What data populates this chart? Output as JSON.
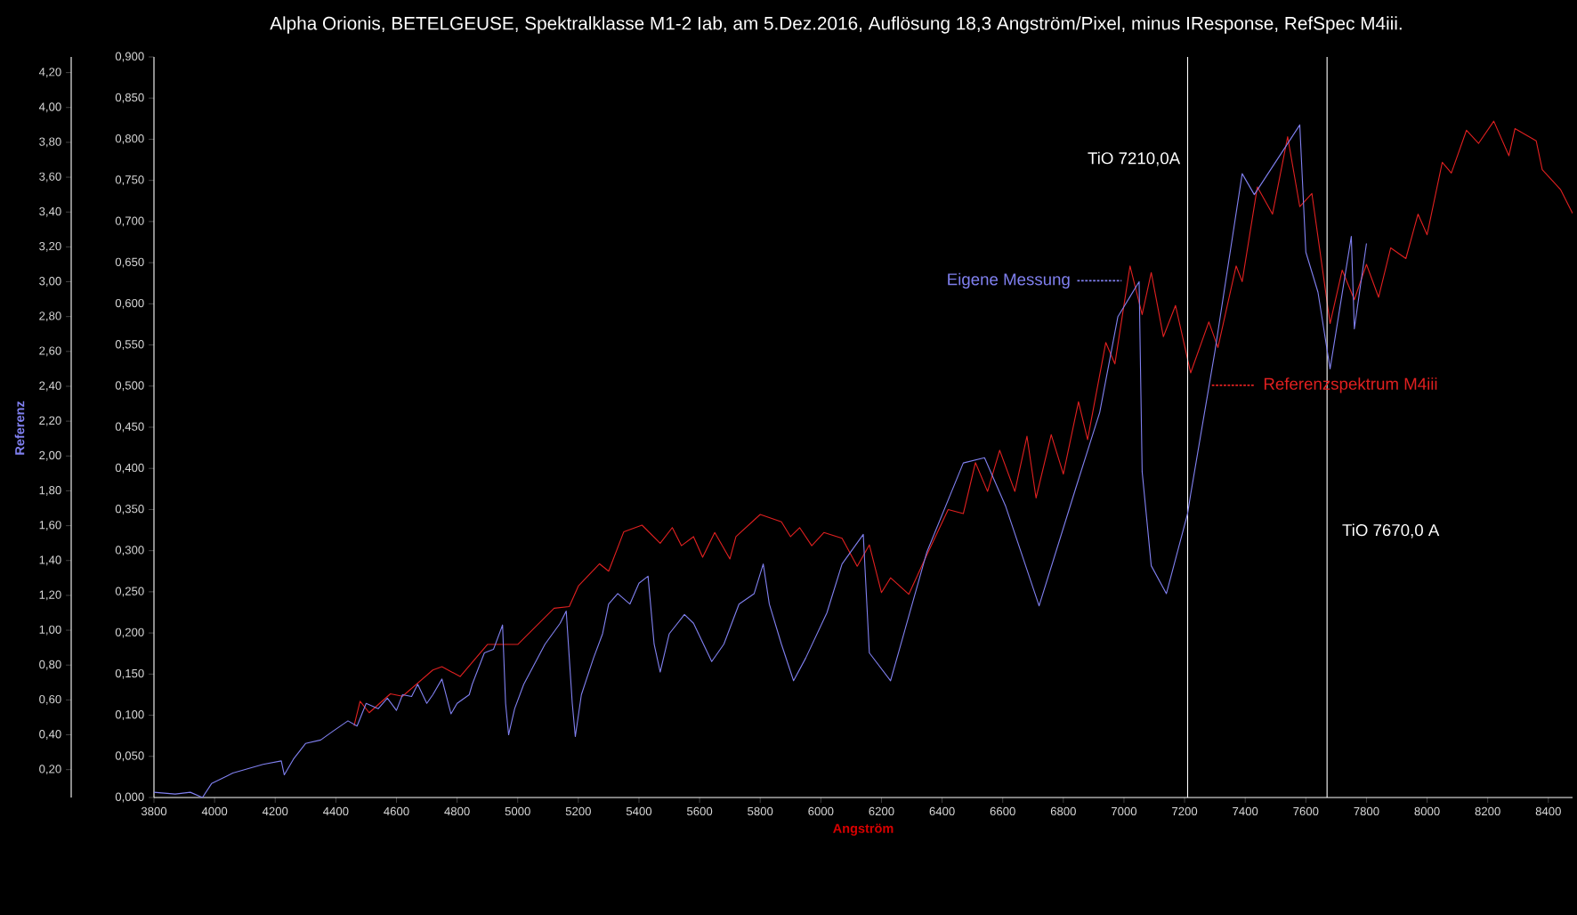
{
  "chart_data": {
    "type": "line",
    "title": "Alpha Orionis, BETELGEUSE, Spektralklasse M1-2 Iab, am 5.Dez.2016, Auflösung 18,3 Angström/Pixel, minus IResponse, RefSpec M4iii.",
    "xlabel": "Angström",
    "y2label": "Referenz",
    "marker": "none",
    "line_style": "solid",
    "xlim": [
      3800,
      8480
    ],
    "xticks": [
      3800,
      4000,
      4200,
      4400,
      4600,
      4800,
      5000,
      5200,
      5400,
      5600,
      5800,
      6000,
      6200,
      6400,
      6600,
      6800,
      7000,
      7200,
      7400,
      7600,
      7800,
      8000,
      8200,
      8400
    ],
    "ylim": [
      0,
      0.9
    ],
    "yticks": [
      {
        "value": 0,
        "label": "0,000"
      },
      {
        "value": 0.05,
        "label": "0,050"
      },
      {
        "value": 0.1,
        "label": "0,100"
      },
      {
        "value": 0.15,
        "label": "0,150"
      },
      {
        "value": 0.2,
        "label": "0,200"
      },
      {
        "value": 0.25,
        "label": "0,250"
      },
      {
        "value": 0.3,
        "label": "0,300"
      },
      {
        "value": 0.35,
        "label": "0,350"
      },
      {
        "value": 0.4,
        "label": "0,400"
      },
      {
        "value": 0.45,
        "label": "0,450"
      },
      {
        "value": 0.5,
        "label": "0,500"
      },
      {
        "value": 0.55,
        "label": "0,550"
      },
      {
        "value": 0.6,
        "label": "0,600"
      },
      {
        "value": 0.65,
        "label": "0,650"
      },
      {
        "value": 0.7,
        "label": "0,700"
      },
      {
        "value": 0.75,
        "label": "0,750"
      },
      {
        "value": 0.8,
        "label": "0,800"
      },
      {
        "value": 0.85,
        "label": "0,850"
      },
      {
        "value": 0.9,
        "label": "0,900"
      }
    ],
    "y2lim": [
      0.04,
      4.29
    ],
    "y2ticks": [
      {
        "value": 0.2,
        "label": "0,20"
      },
      {
        "value": 0.4,
        "label": "0,40"
      },
      {
        "value": 0.6,
        "label": "0,60"
      },
      {
        "value": 0.8,
        "label": "0,80"
      },
      {
        "value": 1.0,
        "label": "1,00"
      },
      {
        "value": 1.2,
        "label": "1,20"
      },
      {
        "value": 1.4,
        "label": "1,40"
      },
      {
        "value": 1.6,
        "label": "1,60"
      },
      {
        "value": 1.8,
        "label": "1,80"
      },
      {
        "value": 2.0,
        "label": "2,00"
      },
      {
        "value": 2.2,
        "label": "2,20"
      },
      {
        "value": 2.4,
        "label": "2,40"
      },
      {
        "value": 2.6,
        "label": "2,60"
      },
      {
        "value": 2.8,
        "label": "2,80"
      },
      {
        "value": 3.0,
        "label": "3,00"
      },
      {
        "value": 3.2,
        "label": "3,20"
      },
      {
        "value": 3.4,
        "label": "3,40"
      },
      {
        "value": 3.6,
        "label": "3,60"
      },
      {
        "value": 3.8,
        "label": "3,80"
      },
      {
        "value": 4.0,
        "label": "4,00"
      },
      {
        "value": 4.2,
        "label": "4,20"
      }
    ],
    "series": [
      {
        "name": "Eigene Messung",
        "color": "#8080f0",
        "axis": "y2",
        "x": [
          3800,
          3870,
          3920,
          3960,
          3990,
          4060,
          4160,
          4220,
          4230,
          4260,
          4300,
          4350,
          4390,
          4440,
          4470,
          4500,
          4540,
          4570,
          4600,
          4620,
          4650,
          4670,
          4700,
          4720,
          4750,
          4780,
          4800,
          4840,
          4850,
          4890,
          4920,
          4950,
          4960,
          4970,
          4990,
          5020,
          5090,
          5140,
          5160,
          5180,
          5190,
          5210,
          5250,
          5280,
          5300,
          5330,
          5370,
          5400,
          5430,
          5450,
          5470,
          5500,
          5550,
          5580,
          5640,
          5680,
          5730,
          5780,
          5810,
          5830,
          5870,
          5910,
          5950,
          6020,
          6070,
          6140,
          6160,
          6230,
          6350,
          6470,
          6540,
          6610,
          6720,
          6840,
          6920,
          6980,
          7050,
          7060,
          7090,
          7140,
          7210,
          7220,
          7300,
          7390,
          7430,
          7580,
          7600,
          7640,
          7680,
          7750,
          7760,
          7800
        ],
        "values": [
          0.07,
          0.06,
          0.07,
          0.04,
          0.12,
          0.18,
          0.23,
          0.25,
          0.17,
          0.26,
          0.35,
          0.37,
          0.42,
          0.48,
          0.45,
          0.58,
          0.55,
          0.61,
          0.54,
          0.63,
          0.62,
          0.69,
          0.58,
          0.63,
          0.72,
          0.52,
          0.58,
          0.63,
          0.69,
          0.87,
          0.89,
          1.03,
          0.58,
          0.4,
          0.55,
          0.69,
          0.92,
          1.04,
          1.11,
          0.58,
          0.39,
          0.63,
          0.84,
          0.98,
          1.15,
          1.21,
          1.15,
          1.27,
          1.31,
          0.92,
          0.76,
          0.98,
          1.09,
          1.04,
          0.82,
          0.92,
          1.15,
          1.21,
          1.38,
          1.15,
          0.92,
          0.71,
          0.84,
          1.1,
          1.38,
          1.55,
          0.87,
          0.71,
          1.45,
          1.96,
          1.99,
          1.71,
          1.14,
          1.81,
          2.25,
          2.8,
          3.0,
          1.91,
          1.37,
          1.21,
          1.67,
          1.78,
          2.6,
          3.62,
          3.5,
          3.9,
          3.17,
          2.94,
          2.5,
          3.26,
          2.73,
          3.22
        ]
      },
      {
        "name": "Referenzspektrum M4iii",
        "color": "#e02020",
        "x": [
          4460,
          4480,
          4510,
          4580,
          4620,
          4720,
          4750,
          4810,
          4900,
          5000,
          5120,
          5170,
          5200,
          5270,
          5300,
          5350,
          5410,
          5470,
          5510,
          5540,
          5580,
          5610,
          5650,
          5700,
          5720,
          5800,
          5870,
          5900,
          5930,
          5970,
          6010,
          6070,
          6120,
          6160,
          6200,
          6230,
          6290,
          6350,
          6420,
          6470,
          6510,
          6550,
          6590,
          6640,
          6680,
          6710,
          6760,
          6800,
          6850,
          6880,
          6940,
          6970,
          7020,
          7060,
          7090,
          7130,
          7170,
          7220,
          7280,
          7310,
          7370,
          7390,
          7440,
          7490,
          7540,
          7580,
          7620,
          7680,
          7720,
          7760,
          7800,
          7840,
          7880,
          7930,
          7970,
          8000,
          8050,
          8080,
          8130,
          8170,
          8220,
          8270,
          8290,
          8360,
          8380,
          8440,
          8480
        ],
        "values": [
          0.087,
          0.117,
          0.103,
          0.126,
          0.123,
          0.155,
          0.159,
          0.147,
          0.186,
          0.186,
          0.23,
          0.232,
          0.257,
          0.284,
          0.275,
          0.323,
          0.331,
          0.309,
          0.328,
          0.306,
          0.317,
          0.292,
          0.322,
          0.29,
          0.317,
          0.344,
          0.335,
          0.317,
          0.328,
          0.306,
          0.322,
          0.315,
          0.281,
          0.307,
          0.249,
          0.267,
          0.247,
          0.295,
          0.35,
          0.345,
          0.407,
          0.372,
          0.422,
          0.372,
          0.439,
          0.364,
          0.441,
          0.393,
          0.481,
          0.435,
          0.553,
          0.527,
          0.646,
          0.587,
          0.638,
          0.56,
          0.598,
          0.516,
          0.578,
          0.547,
          0.646,
          0.627,
          0.742,
          0.709,
          0.803,
          0.718,
          0.734,
          0.576,
          0.641,
          0.605,
          0.648,
          0.608,
          0.668,
          0.655,
          0.709,
          0.684,
          0.772,
          0.759,
          0.811,
          0.795,
          0.822,
          0.78,
          0.813,
          0.798,
          0.763,
          0.739,
          0.71
        ]
      }
    ],
    "ref_lines": [
      {
        "axis": "x",
        "value": 7210,
        "label": "TiO 7210,0A",
        "color": "#ffffff"
      },
      {
        "axis": "x",
        "value": 7670,
        "label": "TiO 7670,0 A",
        "color": "#ffffff"
      }
    ]
  }
}
